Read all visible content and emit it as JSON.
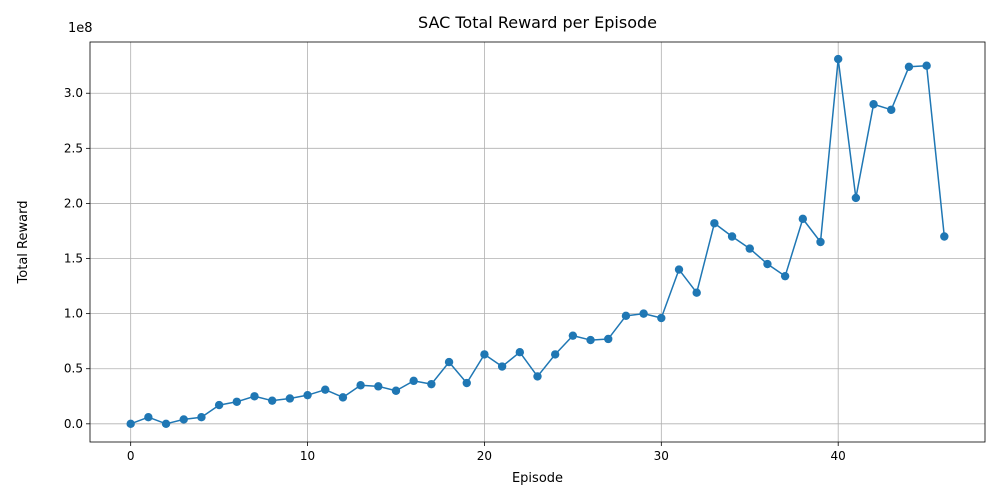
{
  "colors": {
    "line": "#1f77b4",
    "grid": "#b0b0b0",
    "axis": "#000000",
    "background": "#ffffff"
  },
  "chart_data": {
    "type": "line",
    "title": "SAC Total Reward per Episode",
    "xlabel": "Episode",
    "ylabel": "Total Reward",
    "y_offset_label": "1e8",
    "x_ticks": [
      0,
      10,
      20,
      30,
      40
    ],
    "x_tick_labels": [
      "0",
      "10",
      "20",
      "30",
      "40"
    ],
    "y_ticks": [
      0.0,
      0.5,
      1.0,
      1.5,
      2.0,
      2.5,
      3.0
    ],
    "y_tick_labels": [
      "0.0",
      "0.5",
      "1.0",
      "1.5",
      "2.0",
      "2.5",
      "3.0"
    ],
    "xlim": [
      -2.3,
      48.3
    ],
    "ylim": [
      -0.165,
      3.465
    ],
    "y_scale_note": "values in units of 1e8",
    "grid": true,
    "legend": "none",
    "marker": "circle",
    "series": [
      {
        "name": "",
        "x": [
          0,
          1,
          2,
          3,
          4,
          5,
          6,
          7,
          8,
          9,
          10,
          11,
          12,
          13,
          14,
          15,
          16,
          17,
          18,
          19,
          20,
          21,
          22,
          23,
          24,
          25,
          26,
          27,
          28,
          29,
          30,
          31,
          32,
          33,
          34,
          35,
          36,
          37,
          38,
          39,
          40,
          41,
          42,
          43,
          44,
          45,
          46
        ],
        "y": [
          0.0,
          0.06,
          0.0,
          0.04,
          0.06,
          0.17,
          0.2,
          0.25,
          0.21,
          0.23,
          0.26,
          0.31,
          0.24,
          0.35,
          0.34,
          0.3,
          0.39,
          0.36,
          0.56,
          0.37,
          0.63,
          0.52,
          0.65,
          0.43,
          0.63,
          0.8,
          0.76,
          0.77,
          0.98,
          1.0,
          0.96,
          1.4,
          1.19,
          1.82,
          1.7,
          1.59,
          1.45,
          1.34,
          1.86,
          1.65,
          3.31,
          2.05,
          2.9,
          2.85,
          3.24,
          3.25,
          1.7
        ]
      }
    ]
  }
}
